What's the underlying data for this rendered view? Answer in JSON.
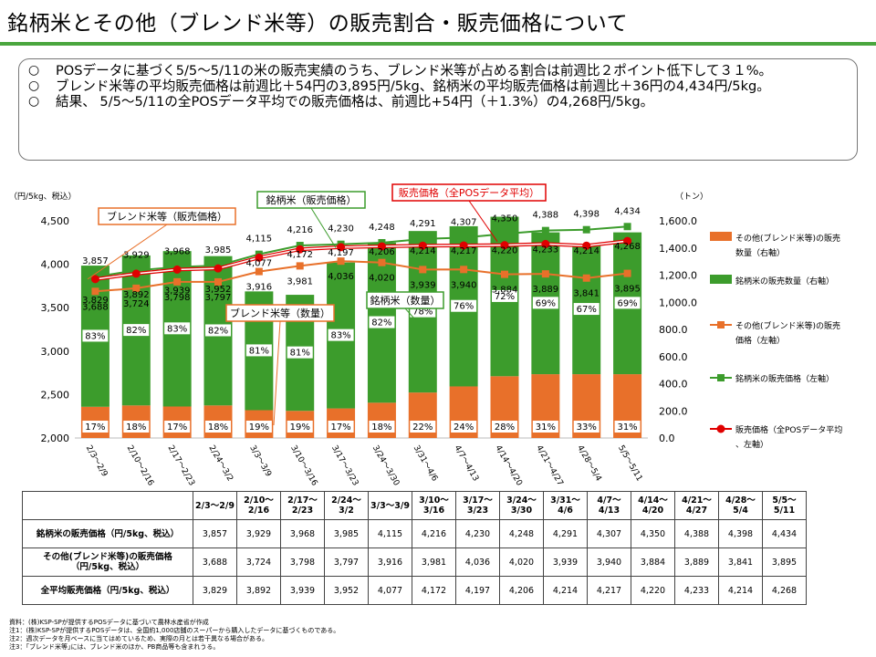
{
  "title": "銘柄米とその他（ブレンド米等）の販売割合・販売価格について",
  "summary": {
    "bullet": "○",
    "lines": [
      "POSデータに基づく5/5～5/11の米の販売実績のうち、ブレンド米等が占める割合は前週比２ポイント低下して３１%。",
      "ブレンド米等の平均販売価格は前週比＋54円の3,895円/5kg、銘柄米の平均販売価格は前週比＋36円の4,434円/5kg。",
      "結果、 5/5～5/11の全POSデータ平均での販売価格は、前週比+54円（＋1.3%）の4,268円/5kg。"
    ]
  },
  "chart_data": {
    "type": "bar",
    "left_axis_label": "（円/5kg、税込）",
    "right_axis_label": "（トン）",
    "left_ylim": [
      2000,
      4500
    ],
    "left_ticks": [
      "4,500",
      "4,000",
      "3,500",
      "3,000",
      "2,500",
      "2,000"
    ],
    "right_ylim": [
      0,
      1600
    ],
    "right_ticks": [
      "1,600.0",
      "1,400.0",
      "1,200.0",
      "1,000.0",
      "800.0",
      "600.0",
      "400.0",
      "200.0",
      "0.0"
    ],
    "categories": [
      "2/3～2/9",
      "2/10～2/16",
      "2/17～2/23",
      "2/24～3/2",
      "3/3～3/9",
      "3/10～3/16",
      "3/17～3/23",
      "3/24～3/30",
      "3/31～4/6",
      "4/7～4/13",
      "4/14～4/20",
      "4/21～4/27",
      "4/28～5/4",
      "5/5～5/11"
    ],
    "stacked_bars": {
      "blend_qty_right": [
        230,
        240,
        232,
        240,
        205,
        200,
        218,
        260,
        335,
        380,
        455,
        470,
        470,
        470
      ],
      "brand_qty_right": [
        1040,
        1105,
        1145,
        1100,
        875,
        855,
        1075,
        1180,
        1190,
        1180,
        1175,
        1045,
        955,
        1045
      ],
      "blend_share_labels": [
        "17%",
        "18%",
        "17%",
        "18%",
        "19%",
        "19%",
        "17%",
        "18%",
        "22%",
        "24%",
        "28%",
        "31%",
        "33%",
        "31%"
      ],
      "brand_share_labels": [
        "83%",
        "82%",
        "83%",
        "82%",
        "81%",
        "81%",
        "83%",
        "82%",
        "78%",
        "76%",
        "72%",
        "69%",
        "67%",
        "69%"
      ]
    },
    "series": [
      {
        "name": "銘柄米の販売価格（左軸）",
        "axis": "left",
        "values": [
          3857,
          3929,
          3968,
          3985,
          4115,
          4216,
          4230,
          4248,
          4291,
          4307,
          4350,
          4388,
          4398,
          4434
        ],
        "labels": [
          "3,857",
          "3,929",
          "3,968",
          "3,985",
          "4,115",
          "4,216",
          "4,230",
          "4,248",
          "4,291",
          "4,307",
          "4,350",
          "4,388",
          "4,398",
          "4,434"
        ]
      },
      {
        "name": "その他(ブレンド米等)の販売価格（左軸）",
        "axis": "left",
        "values": [
          3688,
          3724,
          3798,
          3797,
          3916,
          3981,
          4036,
          4020,
          3939,
          3940,
          3884,
          3889,
          3841,
          3895
        ],
        "labels": [
          "3,688",
          "3,724",
          "3,798",
          "3,797",
          "3,916",
          "3,981",
          "4,036",
          "4,020",
          "3,939",
          "3,940",
          "3,884",
          "3,889",
          "3,841",
          "3,895"
        ]
      },
      {
        "name": "販売価格（全POSデータ平均、左軸）",
        "axis": "left",
        "values": [
          3829,
          3892,
          3939,
          3952,
          4077,
          4172,
          4197,
          4206,
          4214,
          4217,
          4220,
          4233,
          4214,
          4268
        ],
        "labels": [
          "3,829",
          "3,892",
          "3,939",
          "3,952",
          "4,077",
          "4,172",
          "4,197",
          "4,206",
          "4,214",
          "4,217",
          "4,220",
          "4,233",
          "4,214",
          "4,268"
        ]
      }
    ],
    "callouts": {
      "blend_price": "ブレンド米等（販売価格）",
      "brand_price": "銘柄米（販売価格）",
      "avg_price": "販売価格（全POSデータ平均）",
      "blend_qty": "ブレンド米等（数量）",
      "brand_qty": "銘柄米（数量）"
    },
    "legend": [
      "その他(ブレンド米等)の販売数量（右軸）",
      "銘柄米の販売数量（右軸）",
      "その他(ブレンド米等)の販売価格（左軸）",
      "銘柄米の販売価格（左軸）",
      "販売価格（全POSデータ平均、左軸）"
    ],
    "colors": {
      "blend": "#e8702a",
      "brand": "#3c9c2c",
      "avg": "#e00000"
    }
  },
  "table": {
    "headers": [
      [
        "2/3～2/9"
      ],
      [
        "2/10～",
        "2/16"
      ],
      [
        "2/17～",
        "2/23"
      ],
      [
        "2/24～",
        "3/2"
      ],
      [
        "3/3～3/9"
      ],
      [
        "3/10～",
        "3/16"
      ],
      [
        "3/17～",
        "3/23"
      ],
      [
        "3/24～",
        "3/30"
      ],
      [
        "3/31～",
        "4/6"
      ],
      [
        "4/7～",
        "4/13"
      ],
      [
        "4/14～",
        "4/20"
      ],
      [
        "4/21～",
        "4/27"
      ],
      [
        "4/28～",
        "5/4"
      ],
      [
        "5/5～",
        "5/11"
      ]
    ],
    "rows": [
      {
        "label": "銘柄米の販売価格（円/5kg、税込）",
        "values": [
          "3,857",
          "3,929",
          "3,968",
          "3,985",
          "4,115",
          "4,216",
          "4,230",
          "4,248",
          "4,291",
          "4,307",
          "4,350",
          "4,388",
          "4,398",
          "4,434"
        ]
      },
      {
        "label": "その他(ブレンド米等)の販売価格（円/5kg、税込）",
        "values": [
          "3,688",
          "3,724",
          "3,798",
          "3,797",
          "3,916",
          "3,981",
          "4,036",
          "4,020",
          "3,939",
          "3,940",
          "3,884",
          "3,889",
          "3,841",
          "3,895"
        ]
      },
      {
        "label": "全平均販売価格（円/5kg、税込）",
        "values": [
          "3,829",
          "3,892",
          "3,939",
          "3,952",
          "4,077",
          "4,172",
          "4,197",
          "4,206",
          "4,214",
          "4,217",
          "4,220",
          "4,233",
          "4,214",
          "4,268"
        ]
      }
    ]
  },
  "notes": [
    "資料：(株)KSP-SPが提供するPOSデータに基づいて農林水産省が作成",
    "注1：(株)KSP-SPが提供するPOSデータは、全国約1,000店舗のスーパーから購入したデータに基づくものである。",
    "注2：週次データを月ベースに当てはめているため、実際の月とは若干異なる場合がある。",
    "注3：｢ブレンド米等｣には、ブレンド米のほか、PB商品等も含まれうる。"
  ]
}
